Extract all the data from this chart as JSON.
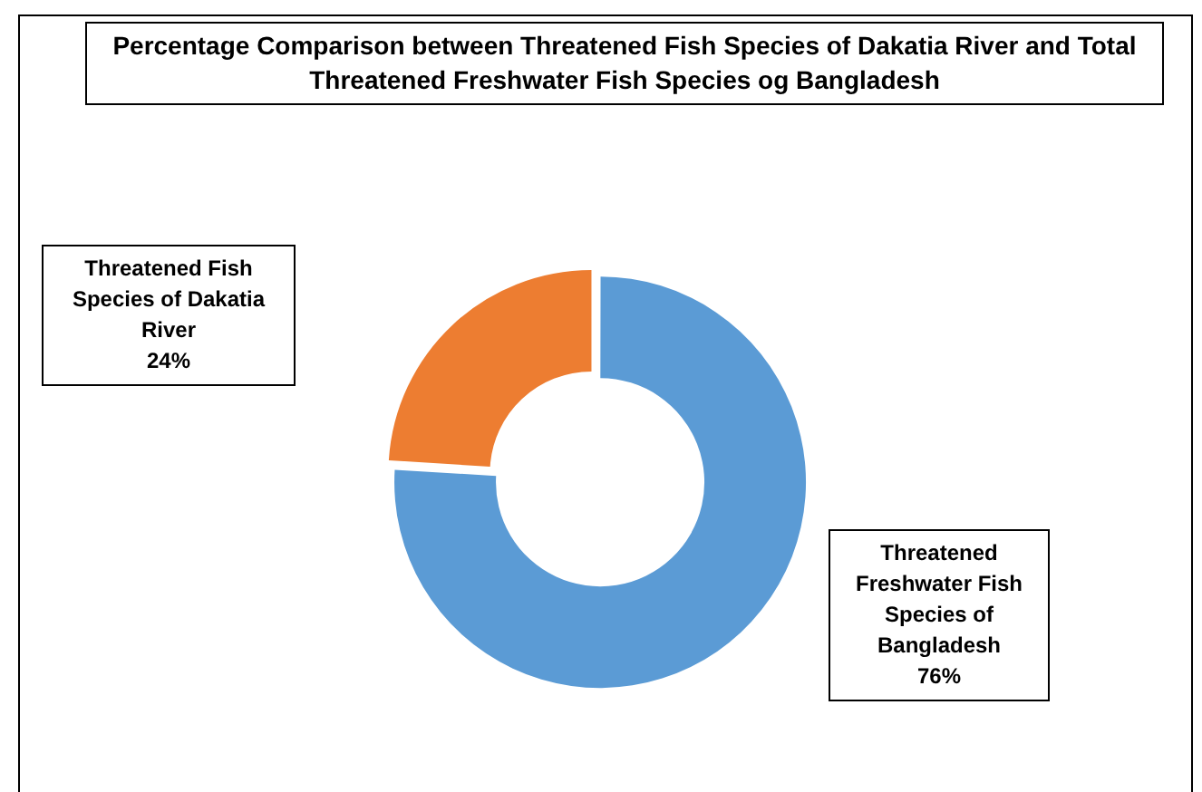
{
  "chart_data": {
    "type": "donut",
    "title": "Percentage Comparison between Threatened Fish Species of Dakatia River and Total Threatened Freshwater Fish Species og Bangladesh",
    "categories": [
      "Threatened Freshwater Fish Species of Bangladesh",
      "Threatened Fish Species of Dakatia River"
    ],
    "values": [
      76,
      24
    ],
    "value_labels": [
      "76%",
      "24%"
    ],
    "colors": [
      "#5b9bd5",
      "#ed7d31"
    ],
    "legend": false
  }
}
